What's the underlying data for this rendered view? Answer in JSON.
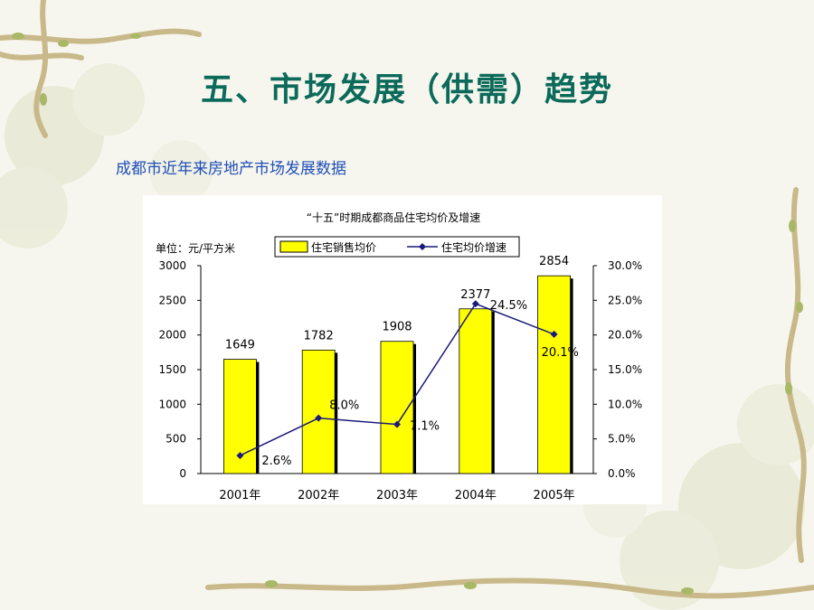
{
  "slide": {
    "title": "五、市场发展（供需）趋势",
    "subtitle": "成都市近年来房地产市场发展数据"
  },
  "colors": {
    "title": "#0b6a5a",
    "subtitle": "#1f4fb8",
    "bar_fill": "#ffff00",
    "bar_shadow": "#000000",
    "line": "#1a1a7a"
  },
  "chart_data": {
    "type": "bar",
    "title": "“十五”时期成都商品住宅均价及增速",
    "unit_label": "单位：元/平方米",
    "categories": [
      "2001年",
      "2002年",
      "2003年",
      "2004年",
      "2005年"
    ],
    "series": [
      {
        "name": "住宅销售均价",
        "type": "bar",
        "axis": "left",
        "values": [
          1649,
          1782,
          1908,
          2377,
          2854
        ],
        "labels": [
          "1649",
          "1782",
          "1908",
          "2377",
          "2854"
        ]
      },
      {
        "name": "住宅均价增速",
        "type": "line",
        "axis": "right",
        "values": [
          2.6,
          8.0,
          7.1,
          24.5,
          20.1
        ],
        "labels": [
          "2.6%",
          "8.0%",
          "7.1%",
          "24.5%",
          "20.1%"
        ]
      }
    ],
    "y_left": {
      "min": 0,
      "max": 3000,
      "ticks": [
        "0",
        "500",
        "1000",
        "1500",
        "2000",
        "2500",
        "3000"
      ]
    },
    "y_right": {
      "min": 0,
      "max": 30,
      "ticks": [
        "0.0%",
        "5.0%",
        "10.0%",
        "15.0%",
        "20.0%",
        "25.0%",
        "30.0%"
      ]
    },
    "legend_position": "top",
    "grid": false
  }
}
